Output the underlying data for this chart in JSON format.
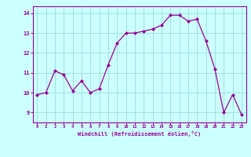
{
  "x": [
    0,
    1,
    2,
    3,
    4,
    5,
    6,
    7,
    8,
    9,
    10,
    11,
    12,
    13,
    14,
    15,
    16,
    17,
    18,
    19,
    20,
    21,
    22,
    23
  ],
  "y": [
    9.9,
    10.0,
    11.1,
    10.9,
    10.1,
    10.6,
    10.0,
    10.2,
    11.4,
    12.5,
    13.0,
    13.0,
    13.1,
    13.2,
    13.4,
    13.9,
    13.9,
    13.6,
    13.7,
    12.6,
    11.2,
    9.0,
    9.9,
    8.9
  ],
  "line_color": "#990099",
  "marker_color": "#990099",
  "bg_color": "#ccffff",
  "grid_color": "#99dddd",
  "xlabel": "Windchill (Refroidissement éolien,°C)",
  "xlim": [
    -0.5,
    23.5
  ],
  "ylim": [
    8.5,
    14.35
  ],
  "yticks": [
    9,
    10,
    11,
    12,
    13,
    14
  ],
  "xticks": [
    0,
    1,
    2,
    3,
    4,
    5,
    6,
    7,
    8,
    9,
    10,
    11,
    12,
    13,
    14,
    15,
    16,
    17,
    18,
    19,
    20,
    21,
    22,
    23
  ],
  "tick_color": "#990099",
  "label_color": "#990099",
  "axis_color": "#990099"
}
